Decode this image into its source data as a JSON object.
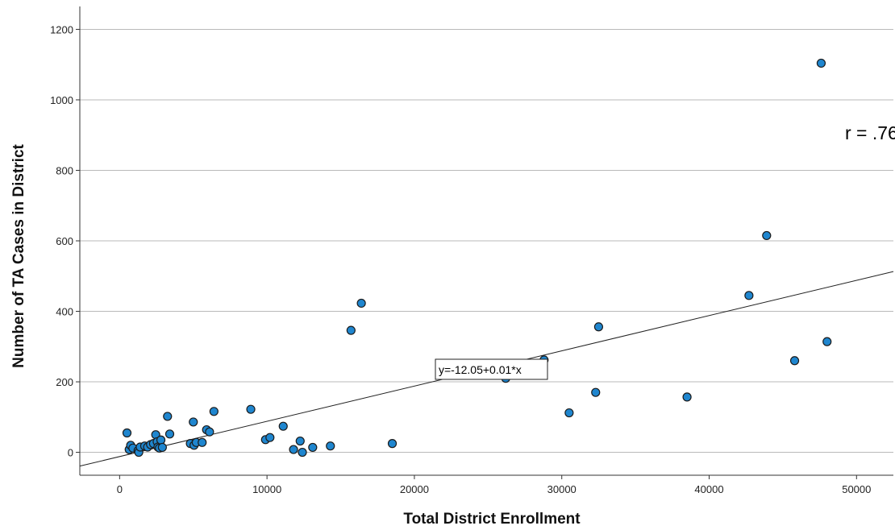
{
  "chart_data": {
    "type": "scatter",
    "xlabel": "Total District Enrollment",
    "ylabel": "Number of TA Cases in District",
    "xlim": [
      -2700,
      52500
    ],
    "ylim": [
      -65,
      1265
    ],
    "xticks": [
      0,
      10000,
      20000,
      30000,
      40000,
      50000
    ],
    "yticks": [
      0,
      200,
      400,
      600,
      800,
      1000,
      1200
    ],
    "grid": "horizontal",
    "point_color": "#1f86cf",
    "points": [
      {
        "x": 500,
        "y": 55
      },
      {
        "x": 650,
        "y": 8
      },
      {
        "x": 750,
        "y": 20
      },
      {
        "x": 900,
        "y": 12
      },
      {
        "x": 1250,
        "y": 5
      },
      {
        "x": 1300,
        "y": 0
      },
      {
        "x": 1400,
        "y": 15
      },
      {
        "x": 1700,
        "y": 18
      },
      {
        "x": 1900,
        "y": 15
      },
      {
        "x": 2100,
        "y": 22
      },
      {
        "x": 2300,
        "y": 25
      },
      {
        "x": 2450,
        "y": 50
      },
      {
        "x": 2550,
        "y": 30
      },
      {
        "x": 2600,
        "y": 15
      },
      {
        "x": 2700,
        "y": 12
      },
      {
        "x": 2800,
        "y": 35
      },
      {
        "x": 2900,
        "y": 14
      },
      {
        "x": 3250,
        "y": 102
      },
      {
        "x": 3400,
        "y": 52
      },
      {
        "x": 4800,
        "y": 25
      },
      {
        "x": 5000,
        "y": 86
      },
      {
        "x": 5050,
        "y": 20
      },
      {
        "x": 5200,
        "y": 28
      },
      {
        "x": 5600,
        "y": 28
      },
      {
        "x": 5900,
        "y": 64
      },
      {
        "x": 6100,
        "y": 58
      },
      {
        "x": 6400,
        "y": 116
      },
      {
        "x": 8900,
        "y": 122
      },
      {
        "x": 9900,
        "y": 36
      },
      {
        "x": 10200,
        "y": 42
      },
      {
        "x": 11100,
        "y": 74
      },
      {
        "x": 11800,
        "y": 8
      },
      {
        "x": 12250,
        "y": 32
      },
      {
        "x": 12400,
        "y": 0
      },
      {
        "x": 13100,
        "y": 14
      },
      {
        "x": 14300,
        "y": 18
      },
      {
        "x": 15700,
        "y": 346
      },
      {
        "x": 16400,
        "y": 423
      },
      {
        "x": 18500,
        "y": 25
      },
      {
        "x": 26200,
        "y": 210
      },
      {
        "x": 28800,
        "y": 262
      },
      {
        "x": 30500,
        "y": 112
      },
      {
        "x": 32300,
        "y": 170
      },
      {
        "x": 32500,
        "y": 356
      },
      {
        "x": 38500,
        "y": 157
      },
      {
        "x": 42700,
        "y": 445
      },
      {
        "x": 43900,
        "y": 615
      },
      {
        "x": 45800,
        "y": 260
      },
      {
        "x": 47600,
        "y": 1104
      },
      {
        "x": 48000,
        "y": 314
      }
    ],
    "fit_line": {
      "intercept": -12.05,
      "slope": 0.01
    },
    "annotations": {
      "equation": "y=-12.05+0.01*x",
      "r_label": "r = .76"
    }
  }
}
